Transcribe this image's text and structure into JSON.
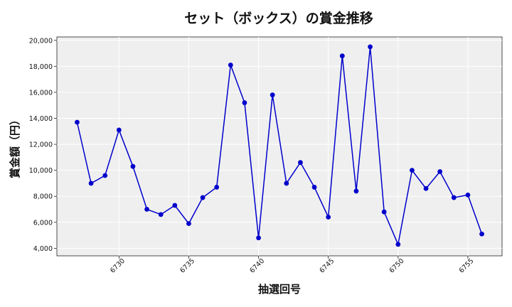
{
  "chart_data": {
    "type": "line",
    "title": "セット（ボックス）の賞金推移",
    "xlabel": "抽選回号",
    "ylabel": "賞金額（円）",
    "x": [
      6727,
      6728,
      6729,
      6730,
      6731,
      6732,
      6733,
      6734,
      6735,
      6736,
      6737,
      6738,
      6739,
      6740,
      6741,
      6742,
      6743,
      6744,
      6745,
      6746,
      6747,
      6748,
      6749,
      6750,
      6751,
      6752,
      6753,
      6754,
      6755,
      6756
    ],
    "series": [
      {
        "values": [
          13700,
          9000,
          9600,
          13100,
          10300,
          7000,
          6600,
          7300,
          5900,
          7900,
          8700,
          18100,
          15200,
          4800,
          15800,
          9000,
          10600,
          8700,
          6400,
          18800,
          8400,
          19500,
          6800,
          4300,
          10000,
          8600,
          9900,
          7900,
          8100,
          5100
        ]
      }
    ],
    "xticks": [
      6730,
      6735,
      6740,
      6745,
      6750,
      6755
    ],
    "yticks": [
      4000,
      6000,
      8000,
      10000,
      12000,
      14000,
      16000,
      18000,
      20000
    ],
    "xlim": [
      6725.55,
      6757.45
    ],
    "ylim": [
      3420,
      20260
    ],
    "grid": true,
    "color": "#0000cc",
    "background": "#efefef"
  }
}
